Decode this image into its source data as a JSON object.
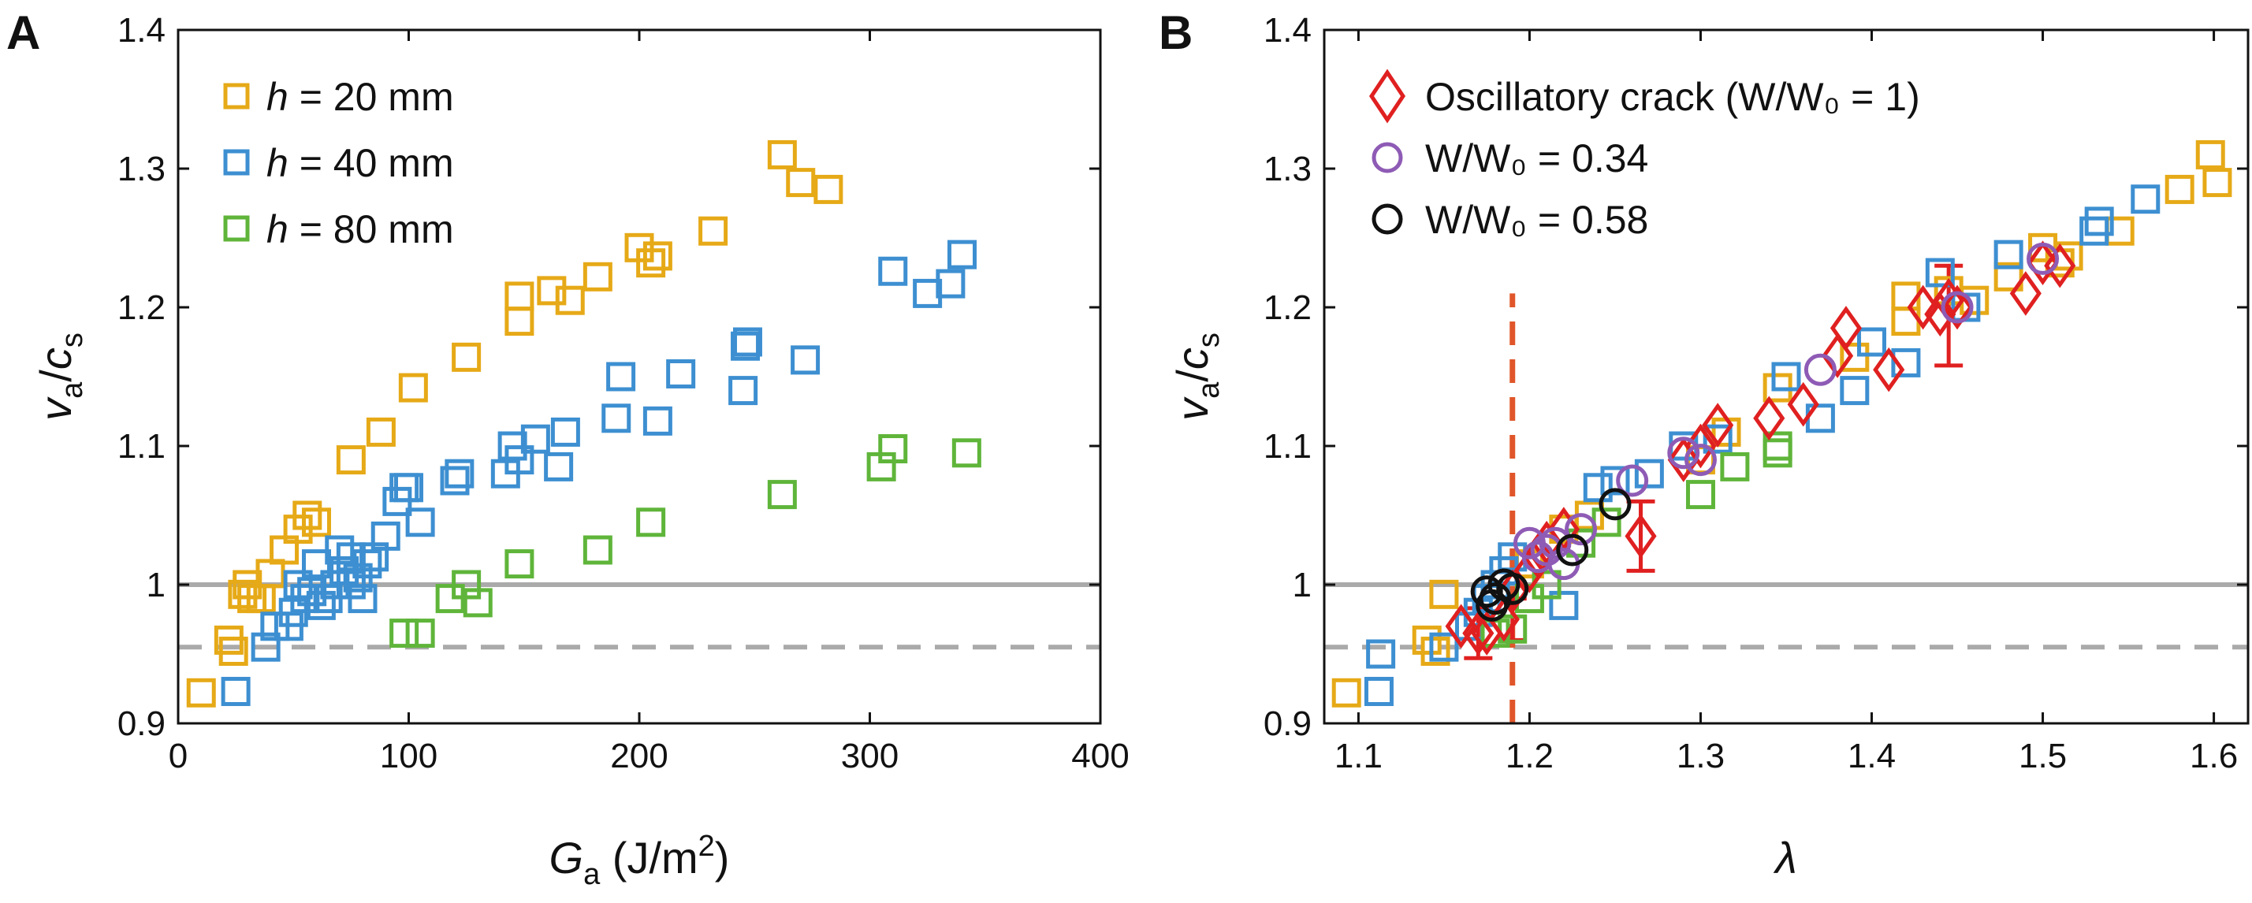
{
  "panels": [
    {
      "letter": "A"
    },
    {
      "letter": "B"
    }
  ],
  "chart_data": [
    {
      "type": "scatter",
      "title": "",
      "panel": "A",
      "xlabel_main": "G",
      "xlabel_sub": "a",
      "xlabel_unit_open": " (J/m",
      "xlabel_unit_sup": "2",
      "xlabel_unit_close": ")",
      "ylabel_v": "v",
      "ylabel_v_sub": "a",
      "ylabel_slash": "/",
      "ylabel_c": "c",
      "ylabel_c_sub": "s",
      "xlim": [
        0,
        400
      ],
      "ylim": [
        0.9,
        1.4
      ],
      "xticks": [
        0,
        100,
        200,
        300,
        400
      ],
      "xtick_labels": [
        "0",
        "100",
        "200",
        "300",
        "400"
      ],
      "yticks": [
        0.9,
        1.0,
        1.1,
        1.2,
        1.3,
        1.4
      ],
      "ytick_labels": [
        "0.9",
        "1",
        "1.1",
        "1.2",
        "1.3",
        "1.4"
      ],
      "hlines": [
        {
          "y": 1.0,
          "style": "solid",
          "color": "#aaaaaa"
        },
        {
          "y": 0.955,
          "style": "dashed",
          "color": "#aaaaaa"
        }
      ],
      "legend": [
        {
          "var": "h",
          "text": " = 20 mm",
          "color": "#E6A917"
        },
        {
          "var": "h",
          "text": " = 40 mm",
          "color": "#3D8FD1"
        },
        {
          "var": "h",
          "text": " = 80 mm",
          "color": "#5FB53A"
        }
      ],
      "series": [
        {
          "name": "h = 20 mm",
          "color": "#E6A917",
          "marker": "square",
          "points": [
            [
              10,
              0.922
            ],
            [
              22,
              0.96
            ],
            [
              24,
              0.952
            ],
            [
              28,
              0.993
            ],
            [
              32,
              0.99
            ],
            [
              36,
              0.99
            ],
            [
              30,
              1.0
            ],
            [
              40,
              1.008
            ],
            [
              46,
              1.025
            ],
            [
              52,
              1.04
            ],
            [
              56,
              1.05
            ],
            [
              60,
              1.045
            ],
            [
              75,
              1.09
            ],
            [
              88,
              1.11
            ],
            [
              102,
              1.142
            ],
            [
              125,
              1.164
            ],
            [
              148,
              1.19
            ],
            [
              148,
              1.208
            ],
            [
              162,
              1.212
            ],
            [
              170,
              1.205
            ],
            [
              182,
              1.222
            ],
            [
              200,
              1.243
            ],
            [
              205,
              1.232
            ],
            [
              208,
              1.237
            ],
            [
              232,
              1.255
            ],
            [
              262,
              1.31
            ],
            [
              270,
              1.29
            ],
            [
              282,
              1.285
            ]
          ]
        },
        {
          "name": "h = 40 mm",
          "color": "#3D8FD1",
          "marker": "square",
          "points": [
            [
              25,
              0.923
            ],
            [
              38,
              0.955
            ],
            [
              42,
              0.97
            ],
            [
              48,
              0.97
            ],
            [
              50,
              0.98
            ],
            [
              55,
              0.99
            ],
            [
              58,
              0.995
            ],
            [
              52,
              1.0
            ],
            [
              62,
              0.985
            ],
            [
              65,
              0.99
            ],
            [
              68,
              1.0
            ],
            [
              72,
              1.01
            ],
            [
              75,
              1.0
            ],
            [
              78,
              1.005
            ],
            [
              80,
              0.99
            ],
            [
              82,
              1.015
            ],
            [
              85,
              1.02
            ],
            [
              70,
              1.025
            ],
            [
              75,
              1.02
            ],
            [
              60,
              1.015
            ],
            [
              90,
              1.035
            ],
            [
              95,
              1.06
            ],
            [
              98,
              1.07
            ],
            [
              100,
              1.07
            ],
            [
              105,
              1.045
            ],
            [
              120,
              1.075
            ],
            [
              122,
              1.08
            ],
            [
              142,
              1.08
            ],
            [
              145,
              1.1
            ],
            [
              148,
              1.09
            ],
            [
              155,
              1.105
            ],
            [
              165,
              1.085
            ],
            [
              168,
              1.11
            ],
            [
              190,
              1.12
            ],
            [
              192,
              1.15
            ],
            [
              208,
              1.118
            ],
            [
              218,
              1.152
            ],
            [
              245,
              1.14
            ],
            [
              246,
              1.172
            ],
            [
              247,
              1.175
            ],
            [
              272,
              1.162
            ],
            [
              310,
              1.226
            ],
            [
              325,
              1.21
            ],
            [
              335,
              1.217
            ],
            [
              340,
              1.238
            ]
          ]
        },
        {
          "name": "h = 80 mm",
          "color": "#5FB53A",
          "marker": "square",
          "points": [
            [
              98,
              0.965
            ],
            [
              105,
              0.965
            ],
            [
              118,
              0.99
            ],
            [
              125,
              1.0
            ],
            [
              130,
              0.987
            ],
            [
              148,
              1.015
            ],
            [
              182,
              1.025
            ],
            [
              205,
              1.045
            ],
            [
              262,
              1.065
            ],
            [
              305,
              1.085
            ],
            [
              310,
              1.098
            ],
            [
              342,
              1.095
            ]
          ]
        }
      ]
    },
    {
      "type": "scatter",
      "title": "",
      "panel": "B",
      "xlabel": "λ",
      "ylabel_v": "v",
      "ylabel_v_sub": "a",
      "ylabel_slash": "/",
      "ylabel_c": "c",
      "ylabel_c_sub": "s",
      "xlim": [
        1.08,
        1.62
      ],
      "ylim": [
        0.9,
        1.4
      ],
      "xticks": [
        1.1,
        1.2,
        1.3,
        1.4,
        1.5,
        1.6
      ],
      "xtick_labels": [
        "1.1",
        "1.2",
        "1.3",
        "1.4",
        "1.5",
        "1.6"
      ],
      "yticks": [
        0.9,
        1.0,
        1.1,
        1.2,
        1.3,
        1.4
      ],
      "ytick_labels": [
        "0.9",
        "1",
        "1.1",
        "1.2",
        "1.3",
        "1.4"
      ],
      "hlines": [
        {
          "y": 1.0,
          "style": "solid",
          "color": "#aaaaaa"
        },
        {
          "y": 0.955,
          "style": "dashed",
          "color": "#aaaaaa"
        }
      ],
      "vline": {
        "x": 1.19,
        "y_from": 0.9,
        "y_to": 1.21,
        "style": "dashed",
        "color": "#E0562A"
      },
      "legend": [
        {
          "text": "Oscillatory crack (W/W₀ = 1)",
          "color": "#E02020",
          "marker": "diamond"
        },
        {
          "text": "W/W₀ = 0.34",
          "color": "#8E5BB5",
          "marker": "circle"
        },
        {
          "text": "W/W₀ = 0.58",
          "color": "#111111",
          "marker": "circle"
        }
      ],
      "series": [
        {
          "name": "h = 20 mm",
          "color": "#E6A917",
          "marker": "square",
          "points": [
            [
              1.093,
              0.922
            ],
            [
              1.14,
              0.96
            ],
            [
              1.145,
              0.952
            ],
            [
              1.15,
              0.993
            ],
            [
              1.18,
              1.0
            ],
            [
              1.2,
              1.015
            ],
            [
              1.22,
              1.04
            ],
            [
              1.235,
              1.05
            ],
            [
              1.3,
              1.09
            ],
            [
              1.315,
              1.11
            ],
            [
              1.345,
              1.142
            ],
            [
              1.39,
              1.164
            ],
            [
              1.42,
              1.19
            ],
            [
              1.42,
              1.208
            ],
            [
              1.445,
              1.212
            ],
            [
              1.46,
              1.205
            ],
            [
              1.48,
              1.222
            ],
            [
              1.5,
              1.243
            ],
            [
              1.51,
              1.232
            ],
            [
              1.515,
              1.237
            ],
            [
              1.545,
              1.255
            ],
            [
              1.58,
              1.285
            ],
            [
              1.598,
              1.31
            ],
            [
              1.602,
              1.29
            ]
          ]
        },
        {
          "name": "h = 40 mm",
          "color": "#3D8FD1",
          "marker": "square",
          "points": [
            [
              1.112,
              0.923
            ],
            [
              1.113,
              0.95
            ],
            [
              1.15,
              0.955
            ],
            [
              1.165,
              0.97
            ],
            [
              1.17,
              0.98
            ],
            [
              1.175,
              0.99
            ],
            [
              1.18,
              1.0
            ],
            [
              1.185,
              1.01
            ],
            [
              1.19,
              1.02
            ],
            [
              1.22,
              0.985
            ],
            [
              1.24,
              1.07
            ],
            [
              1.25,
              1.075
            ],
            [
              1.27,
              1.08
            ],
            [
              1.29,
              1.1
            ],
            [
              1.31,
              1.105
            ],
            [
              1.35,
              1.15
            ],
            [
              1.37,
              1.12
            ],
            [
              1.39,
              1.14
            ],
            [
              1.4,
              1.175
            ],
            [
              1.42,
              1.16
            ],
            [
              1.44,
              1.225
            ],
            [
              1.455,
              1.2
            ],
            [
              1.48,
              1.238
            ],
            [
              1.53,
              1.255
            ],
            [
              1.533,
              1.262
            ],
            [
              1.56,
              1.278
            ]
          ]
        },
        {
          "name": "h = 80 mm",
          "color": "#5FB53A",
          "marker": "square",
          "points": [
            [
              1.18,
              0.965
            ],
            [
              1.19,
              0.968
            ],
            [
              1.2,
              0.99
            ],
            [
              1.21,
              1.0
            ],
            [
              1.23,
              1.03
            ],
            [
              1.245,
              1.045
            ],
            [
              1.3,
              1.065
            ],
            [
              1.32,
              1.085
            ],
            [
              1.345,
              1.095
            ],
            [
              1.345,
              1.1
            ]
          ]
        },
        {
          "name": "Oscillatory crack (W/W0 = 1)",
          "color": "#E02020",
          "marker": "diamond",
          "points": [
            [
              1.16,
              0.97
            ],
            [
              1.17,
              0.965
            ],
            [
              1.175,
              0.965
            ],
            [
              1.185,
              0.975
            ],
            [
              1.19,
              0.995
            ],
            [
              1.2,
              1.01
            ],
            [
              1.205,
              1.02
            ],
            [
              1.21,
              1.03
            ],
            [
              1.22,
              1.04
            ],
            [
              1.265,
              1.035
            ],
            [
              1.29,
              1.09
            ],
            [
              1.3,
              1.1
            ],
            [
              1.31,
              1.115
            ],
            [
              1.34,
              1.12
            ],
            [
              1.36,
              1.13
            ],
            [
              1.38,
              1.165
            ],
            [
              1.385,
              1.185
            ],
            [
              1.41,
              1.155
            ],
            [
              1.43,
              1.2
            ],
            [
              1.44,
              1.195
            ],
            [
              1.445,
              1.205
            ],
            [
              1.45,
              1.2
            ],
            [
              1.49,
              1.21
            ],
            [
              1.5,
              1.232
            ],
            [
              1.51,
              1.23
            ]
          ]
        },
        {
          "name": "W/W0 = 0.34",
          "color": "#8E5BB5",
          "marker": "circle",
          "points": [
            [
              1.2,
              1.03
            ],
            [
              1.205,
              1.02
            ],
            [
              1.21,
              1.025
            ],
            [
              1.215,
              1.03
            ],
            [
              1.22,
              1.015
            ],
            [
              1.23,
              1.04
            ],
            [
              1.26,
              1.075
            ],
            [
              1.29,
              1.095
            ],
            [
              1.3,
              1.09
            ],
            [
              1.37,
              1.155
            ],
            [
              1.45,
              1.2
            ],
            [
              1.5,
              1.235
            ]
          ]
        },
        {
          "name": "W/W0 = 0.58",
          "color": "#111111",
          "marker": "circle",
          "points": [
            [
              1.175,
              0.995
            ],
            [
              1.178,
              0.985
            ],
            [
              1.18,
              0.99
            ],
            [
              1.185,
              1.0
            ],
            [
              1.19,
              0.997
            ],
            [
              1.225,
              1.025
            ],
            [
              1.25,
              1.058
            ]
          ]
        }
      ],
      "errorbars": [
        {
          "x": 1.17,
          "y": 0.965,
          "lo": 0.947,
          "hi": 0.983,
          "color": "#E02020"
        },
        {
          "x": 1.19,
          "y": 0.975,
          "lo": 0.96,
          "hi": 0.99,
          "color": "#E02020"
        },
        {
          "x": 1.265,
          "y": 1.035,
          "lo": 1.01,
          "hi": 1.06,
          "color": "#E02020"
        },
        {
          "x": 1.445,
          "y": 1.2,
          "lo": 1.158,
          "hi": 1.23,
          "color": "#E02020"
        }
      ]
    }
  ]
}
